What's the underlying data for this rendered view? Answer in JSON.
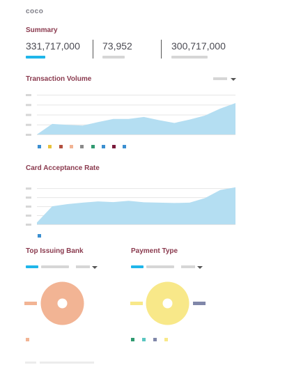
{
  "app": {
    "brand": "coco"
  },
  "summary": {
    "title": "Summary",
    "metrics": [
      {
        "value": "331,717,000",
        "active": true
      },
      {
        "value": "73,952",
        "active": false
      },
      {
        "value": "300,717,000",
        "active": false
      }
    ]
  },
  "colors": {
    "accent": "#1fb6ea",
    "area_fill": "#b4def2",
    "title": "#8a3a4e",
    "placeholder": "#d6d6d6",
    "bank_donut": "#f2b494",
    "payment_donut": "#f8e889",
    "payment_legend": "#8087a9"
  },
  "transaction_volume": {
    "title": "Transaction Volume",
    "dropdown_icon": "chevron-down-icon",
    "legend_colors": [
      "#3b8fd0",
      "#e8c23a",
      "#b3503f",
      "#f2b494",
      "#8a8a8a",
      "#2f9a70",
      "#3b8fd0",
      "#7a1a3a",
      "#3b8fd0"
    ]
  },
  "card_acceptance_rate": {
    "title": "Card Acceptance Rate",
    "legend_colors": [
      "#3b8fd0"
    ]
  },
  "top_issuing_bank": {
    "title": "Top Issuing Bank",
    "dropdown_icon": "chevron-down-icon",
    "legend_colors": [
      "#f2b494"
    ]
  },
  "payment_type": {
    "title": "Payment Type",
    "dropdown_icon": "chevron-down-icon",
    "legend_colors": [
      "#2f9a70",
      "#5ac6c0",
      "#8087a9",
      "#f8e889"
    ]
  },
  "chart_data": [
    {
      "type": "area",
      "title": "Transaction Volume",
      "x": [
        0,
        1,
        2,
        3,
        4,
        5,
        6,
        7,
        8,
        9,
        10,
        11,
        12,
        13
      ],
      "series": [
        {
          "values": [
            0.0,
            0.53,
            0.48,
            0.45,
            0.62,
            0.78,
            0.78,
            0.88,
            0.72,
            0.58,
            0.75,
            0.95,
            1.3,
            1.58
          ]
        }
      ],
      "ylim": [
        0,
        2
      ],
      "grid": true
    },
    {
      "type": "area",
      "title": "Card Acceptance Rate",
      "x": [
        0,
        1,
        2,
        3,
        4,
        5,
        6,
        7,
        8,
        9,
        10,
        11,
        12,
        13
      ],
      "series": [
        {
          "values": [
            0.1,
            1.0,
            1.12,
            1.2,
            1.27,
            1.23,
            1.3,
            1.22,
            1.2,
            1.18,
            1.2,
            1.45,
            1.9,
            2.05
          ]
        }
      ],
      "ylim": [
        0,
        2.2
      ],
      "grid": true
    }
  ]
}
